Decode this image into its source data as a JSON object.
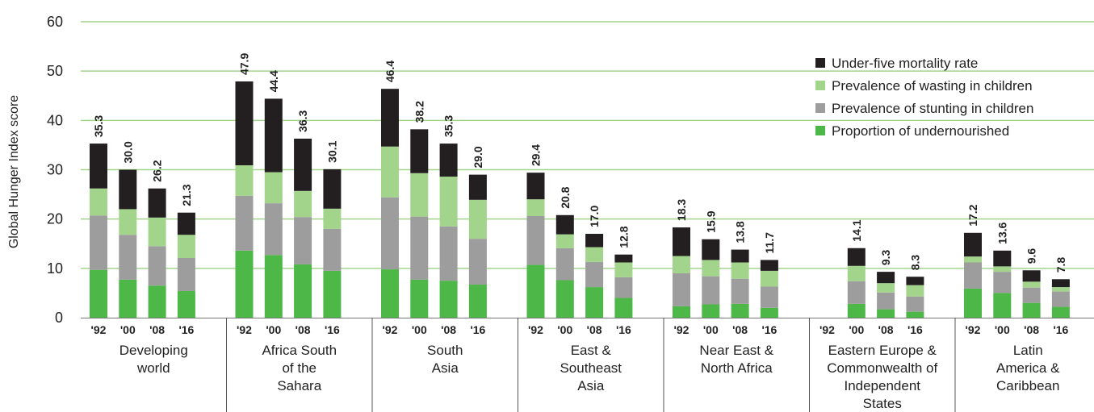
{
  "chart_data": {
    "type": "bar",
    "stacked": true,
    "ylabel": "Global Hunger Index score",
    "ylim": [
      0,
      60
    ],
    "yticks": [
      "0",
      "10",
      "20",
      "30",
      "40",
      "50",
      "60"
    ],
    "grid": "horizontal",
    "legend_position": "top-right",
    "colors": {
      "Under-five mortality rate": "#231f20",
      "Prevalence of wasting in children": "#a2d48c",
      "Prevalence of stunting in children": "#9d9d9d",
      "Proportion of undernourished": "#4db848",
      "gridline": "#a2d48c"
    },
    "legend": [
      "Under-five mortality rate",
      "Prevalence of wasting in children",
      "Prevalence of stunting in children",
      "Proportion of undernourished"
    ],
    "groups": [
      {
        "name": [
          "Developing",
          "world"
        ],
        "years": [
          "'92",
          "'00",
          "'08",
          "'16"
        ],
        "undernourished": [
          9.7,
          7.7,
          6.5,
          5.4
        ],
        "stunting": [
          11.0,
          9.1,
          8.0,
          6.7
        ],
        "wasting": [
          5.5,
          5.2,
          5.8,
          4.7
        ],
        "mortality": [
          9.1,
          8.0,
          5.9,
          4.5
        ],
        "totals": [
          "35.3",
          "30.0",
          "26.2",
          "21.3"
        ]
      },
      {
        "name": [
          "Africa South",
          "of the",
          "Sahara"
        ],
        "years": [
          "'92",
          "'00",
          "'08",
          "'16"
        ],
        "undernourished": [
          13.6,
          12.7,
          10.8,
          9.5
        ],
        "stunting": [
          11.1,
          10.5,
          9.6,
          8.5
        ],
        "wasting": [
          6.2,
          6.3,
          5.3,
          4.1
        ],
        "mortality": [
          17.0,
          14.9,
          10.6,
          8.0
        ],
        "totals": [
          "47.9",
          "44.4",
          "36.3",
          "30.1"
        ]
      },
      {
        "name": [
          "South",
          "Asia"
        ],
        "years": [
          "'92",
          "'00",
          "'08",
          "'16"
        ],
        "undernourished": [
          9.8,
          7.7,
          7.5,
          6.7
        ],
        "stunting": [
          14.6,
          12.8,
          11.0,
          9.3
        ],
        "wasting": [
          10.3,
          8.8,
          10.1,
          7.9
        ],
        "mortality": [
          11.7,
          8.9,
          6.7,
          5.1
        ],
        "totals": [
          "46.4",
          "38.2",
          "35.3",
          "29.0"
        ]
      },
      {
        "name": [
          "East &",
          "Southeast",
          "Asia"
        ],
        "years": [
          "'92",
          "'00",
          "'08",
          "'16"
        ],
        "undernourished": [
          10.7,
          7.6,
          6.2,
          4.0
        ],
        "stunting": [
          9.9,
          6.5,
          5.1,
          4.2
        ],
        "wasting": [
          3.4,
          2.8,
          3.0,
          3.0
        ],
        "mortality": [
          5.4,
          3.9,
          2.7,
          1.6
        ],
        "totals": [
          "29.4",
          "20.8",
          "17.0",
          "12.8"
        ]
      },
      {
        "name": [
          "Near East &",
          "North Africa"
        ],
        "years": [
          "'92",
          "'00",
          "'08",
          "'16"
        ],
        "undernourished": [
          2.3,
          2.7,
          2.8,
          2.0
        ],
        "stunting": [
          6.7,
          5.7,
          5.1,
          4.3
        ],
        "wasting": [
          3.5,
          3.3,
          3.3,
          3.2
        ],
        "mortality": [
          5.8,
          4.2,
          2.6,
          2.2
        ],
        "totals": [
          "18.3",
          "15.9",
          "13.8",
          "11.7"
        ]
      },
      {
        "name": [
          "Eastern Europe &",
          "Commonwealth of",
          "Independent",
          "States"
        ],
        "years": [
          "'92",
          "'00",
          "'08",
          "'16"
        ],
        "undernourished": [
          null,
          2.8,
          1.7,
          1.2
        ],
        "stunting": [
          null,
          4.6,
          3.4,
          3.1
        ],
        "wasting": [
          null,
          3.1,
          1.9,
          2.3
        ],
        "mortality": [
          null,
          3.6,
          2.3,
          1.7
        ],
        "totals": [
          "",
          "14.1",
          "9.3",
          "8.3"
        ]
      },
      {
        "name": [
          "Latin",
          "America &",
          "Caribbean"
        ],
        "years": [
          "'92",
          "'00",
          "'08",
          "'16"
        ],
        "undernourished": [
          5.9,
          5.0,
          3.0,
          2.2
        ],
        "stunting": [
          5.3,
          4.3,
          3.1,
          3.1
        ],
        "wasting": [
          1.2,
          1.1,
          1.2,
          0.9
        ],
        "mortality": [
          4.8,
          3.2,
          2.3,
          1.6
        ],
        "totals": [
          "17.2",
          "13.6",
          "9.6",
          "7.8"
        ]
      }
    ]
  }
}
